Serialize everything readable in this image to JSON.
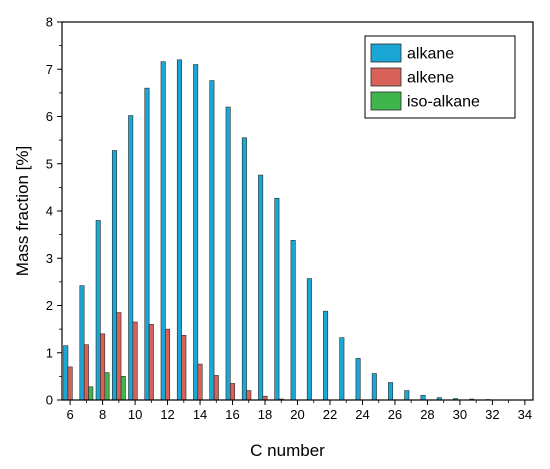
{
  "chart_data": {
    "type": "bar",
    "xlabel": "C number",
    "ylabel": "Mass fraction [%]",
    "xlim": [
      5.5,
      34.5
    ],
    "ylim": [
      0,
      8
    ],
    "xticks": [
      6,
      8,
      10,
      12,
      14,
      16,
      18,
      20,
      22,
      24,
      26,
      28,
      30,
      32,
      34
    ],
    "yticks": [
      0,
      1,
      2,
      3,
      4,
      5,
      6,
      7,
      8
    ],
    "grid": false,
    "legend": {
      "position": "top-right"
    },
    "x": [
      6,
      7,
      8,
      9,
      10,
      11,
      12,
      13,
      14,
      15,
      16,
      17,
      18,
      19,
      20,
      21,
      22,
      23,
      24,
      25,
      26,
      27,
      28,
      29,
      30,
      31,
      32,
      33,
      34
    ],
    "series": [
      {
        "name": "alkane",
        "color": "#1aa7d6",
        "values": [
          1.15,
          2.42,
          3.8,
          5.28,
          6.02,
          6.6,
          7.16,
          7.2,
          7.1,
          6.76,
          6.2,
          5.55,
          4.76,
          4.27,
          3.38,
          2.57,
          1.88,
          1.32,
          0.88,
          0.56,
          0.37,
          0.2,
          0.1,
          0.05,
          0.03,
          0.02,
          0.01,
          0.0,
          0.0
        ]
      },
      {
        "name": "alkene",
        "color": "#d8625a",
        "values": [
          0.7,
          1.17,
          1.4,
          1.85,
          1.65,
          1.6,
          1.5,
          1.37,
          0.76,
          0.52,
          0.35,
          0.2,
          0.08,
          0.02,
          0.0,
          0.0,
          0.0,
          0.0,
          0.0,
          0.0,
          0.0,
          0.0,
          0.0,
          0.0,
          0.0,
          0.0,
          0.0,
          0.0,
          0.0
        ]
      },
      {
        "name": "iso-alkane",
        "color": "#3fb54b",
        "values": [
          0.0,
          0.28,
          0.58,
          0.5,
          0.0,
          0.0,
          0.0,
          0.0,
          0.0,
          0.0,
          0.0,
          0.0,
          0.0,
          0.0,
          0.0,
          0.0,
          0.0,
          0.0,
          0.0,
          0.0,
          0.0,
          0.0,
          0.0,
          0.0,
          0.0,
          0.0,
          0.0,
          0.0,
          0.0
        ]
      }
    ]
  }
}
